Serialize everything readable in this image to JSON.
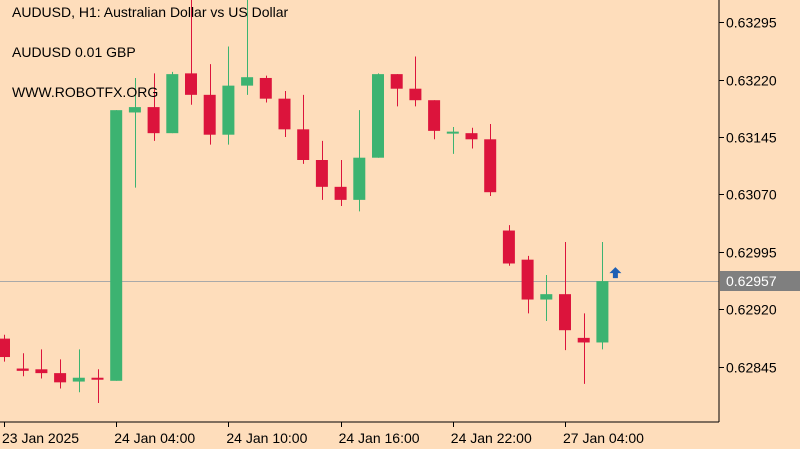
{
  "header": {
    "title": "AUDUSD, H1:  Australian Dollar vs US Dollar",
    "position_info": "AUDUSD 0.01 GBP",
    "watermark": "WWW.ROBOTFX.ORG"
  },
  "colors": {
    "background": "#FEDDBB",
    "bull": "#3CB371",
    "bear": "#DC143C",
    "axis": "#000000",
    "bid_line": "#A9A9A9",
    "price_tag": "#7F7F7F",
    "arrow": "#1E5FB4"
  },
  "chart_data": {
    "type": "candlestick",
    "symbol": "AUDUSD",
    "timeframe": "H1",
    "ylim": [
      0.62785,
      0.63325
    ],
    "y_ticks": [
      "0.63295",
      "0.63220",
      "0.63145",
      "0.63070",
      "0.62995",
      "0.62920",
      "0.62845"
    ],
    "x_ticks": [
      "23 Jan 2025",
      "24 Jan 04:00",
      "24 Jan 10:00",
      "24 Jan 16:00",
      "24 Jan 22:00",
      "27 Jan 04:00"
    ],
    "x_tick_candle_index": [
      0,
      6,
      12,
      18,
      24,
      30
    ],
    "current_price": "0.62957",
    "candles": [
      {
        "o": 0.62882,
        "h": 0.62887,
        "l": 0.62852,
        "c": 0.62858
      },
      {
        "o": 0.62843,
        "h": 0.62863,
        "l": 0.62833,
        "c": 0.6284
      },
      {
        "o": 0.62842,
        "h": 0.62868,
        "l": 0.6283,
        "c": 0.62837
      },
      {
        "o": 0.62837,
        "h": 0.62855,
        "l": 0.62817,
        "c": 0.62825
      },
      {
        "o": 0.62826,
        "h": 0.62868,
        "l": 0.62812,
        "c": 0.62831
      },
      {
        "o": 0.62831,
        "h": 0.62842,
        "l": 0.62798,
        "c": 0.62829
      },
      {
        "o": 0.62827,
        "h": 0.6318,
        "l": 0.62827,
        "c": 0.6318
      },
      {
        "o": 0.63177,
        "h": 0.63222,
        "l": 0.63079,
        "c": 0.63184
      },
      {
        "o": 0.63184,
        "h": 0.63228,
        "l": 0.6314,
        "c": 0.6315
      },
      {
        "o": 0.6315,
        "h": 0.6323,
        "l": 0.6315,
        "c": 0.63227
      },
      {
        "o": 0.63228,
        "h": 0.63325,
        "l": 0.63187,
        "c": 0.632
      },
      {
        "o": 0.632,
        "h": 0.6324,
        "l": 0.63135,
        "c": 0.63148
      },
      {
        "o": 0.63148,
        "h": 0.63263,
        "l": 0.63135,
        "c": 0.63212
      },
      {
        "o": 0.63212,
        "h": 0.63325,
        "l": 0.632,
        "c": 0.63223
      },
      {
        "o": 0.63222,
        "h": 0.63225,
        "l": 0.6319,
        "c": 0.63195
      },
      {
        "o": 0.63195,
        "h": 0.63205,
        "l": 0.63145,
        "c": 0.63155
      },
      {
        "o": 0.63155,
        "h": 0.632,
        "l": 0.6311,
        "c": 0.63115
      },
      {
        "o": 0.63115,
        "h": 0.6314,
        "l": 0.63063,
        "c": 0.6308
      },
      {
        "o": 0.6308,
        "h": 0.63115,
        "l": 0.63055,
        "c": 0.63063
      },
      {
        "o": 0.63063,
        "h": 0.6318,
        "l": 0.63048,
        "c": 0.63118
      },
      {
        "o": 0.63118,
        "h": 0.63228,
        "l": 0.63118,
        "c": 0.63227
      },
      {
        "o": 0.63227,
        "h": 0.63227,
        "l": 0.63185,
        "c": 0.63208
      },
      {
        "o": 0.63208,
        "h": 0.6325,
        "l": 0.63185,
        "c": 0.63193
      },
      {
        "o": 0.63193,
        "h": 0.63193,
        "l": 0.63142,
        "c": 0.63153
      },
      {
        "o": 0.6315,
        "h": 0.63158,
        "l": 0.63123,
        "c": 0.63152
      },
      {
        "o": 0.6315,
        "h": 0.63157,
        "l": 0.6313,
        "c": 0.63142
      },
      {
        "o": 0.63142,
        "h": 0.63162,
        "l": 0.63068,
        "c": 0.63073
      },
      {
        "o": 0.63023,
        "h": 0.6303,
        "l": 0.62977,
        "c": 0.6298
      },
      {
        "o": 0.62985,
        "h": 0.6299,
        "l": 0.62915,
        "c": 0.62933
      },
      {
        "o": 0.62933,
        "h": 0.62965,
        "l": 0.62905,
        "c": 0.6294
      },
      {
        "o": 0.6294,
        "h": 0.63008,
        "l": 0.62867,
        "c": 0.62893
      },
      {
        "o": 0.62883,
        "h": 0.62915,
        "l": 0.62823,
        "c": 0.62877
      },
      {
        "o": 0.62877,
        "h": 0.63008,
        "l": 0.62868,
        "c": 0.62957
      }
    ]
  }
}
